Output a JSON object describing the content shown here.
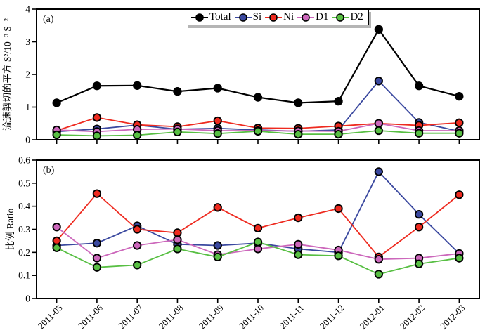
{
  "figure": {
    "background": "#ffffff",
    "axis_color": "#000000"
  },
  "legend": {
    "position": "top-center",
    "entries": [
      {
        "label": "Total",
        "color": "#000000"
      },
      {
        "label": "Si",
        "color": "#3a489f"
      },
      {
        "label": "Ni",
        "color": "#ee2a1f"
      },
      {
        "label": "D1",
        "color": "#cc67bb"
      },
      {
        "label": "D2",
        "color": "#58bf43"
      }
    ]
  },
  "chart_data": [
    {
      "type": "line",
      "panel_label": "(a)",
      "title": "",
      "xlabel": "",
      "ylabel": "流速剪切的平方 S²/10⁻³ S⁻²",
      "ylim": [
        0,
        4
      ],
      "yticks": [
        0,
        1,
        2,
        3,
        4
      ],
      "ytick_labels": [
        "0",
        "1",
        "2",
        "3",
        "4"
      ],
      "grid": false,
      "legend_position": "top-center-inside",
      "show_x_labels": false,
      "categories": [
        "2011-05",
        "2011-06",
        "2011-07",
        "2011-08",
        "2011-09",
        "2011-10",
        "2011-11",
        "2011-12",
        "2012-01",
        "2012-02",
        "2012-03"
      ],
      "series": [
        {
          "name": "Si",
          "color": "#3a489f",
          "values": [
            0.25,
            0.33,
            0.45,
            0.32,
            0.35,
            0.3,
            0.26,
            0.3,
            1.8,
            0.53,
            0.26
          ]
        },
        {
          "name": "Ni",
          "color": "#ee2a1f",
          "values": [
            0.28,
            0.68,
            0.46,
            0.4,
            0.58,
            0.36,
            0.35,
            0.42,
            0.5,
            0.44,
            0.52
          ]
        },
        {
          "name": "D1",
          "color": "#cc67bb",
          "values": [
            0.3,
            0.25,
            0.32,
            0.33,
            0.28,
            0.28,
            0.27,
            0.26,
            0.5,
            0.28,
            0.28
          ]
        },
        {
          "name": "D2",
          "color": "#58bf43",
          "values": [
            0.15,
            0.12,
            0.14,
            0.24,
            0.19,
            0.26,
            0.17,
            0.17,
            0.28,
            0.2,
            0.2
          ]
        },
        {
          "name": "Total",
          "color": "#000000",
          "values": [
            1.13,
            1.65,
            1.66,
            1.48,
            1.58,
            1.3,
            1.13,
            1.18,
            3.38,
            1.65,
            1.33
          ]
        }
      ]
    },
    {
      "type": "line",
      "panel_label": "(b)",
      "title": "",
      "xlabel": "",
      "ylabel": "比例 Ratio",
      "ylim": [
        0,
        0.6
      ],
      "yticks": [
        0,
        0.1,
        0.2,
        0.3,
        0.4,
        0.5,
        0.6
      ],
      "ytick_labels": [
        "0",
        "0.1",
        "0.2",
        "0.3",
        "0.4",
        "0.5",
        "0.6"
      ],
      "grid": false,
      "show_x_labels": true,
      "categories": [
        "2011-05",
        "2011-06",
        "2011-07",
        "2011-08",
        "2011-09",
        "2011-10",
        "2011-11",
        "2011-12",
        "2012-01",
        "2012-02",
        "2012-03"
      ],
      "series": [
        {
          "name": "Si",
          "color": "#3a489f",
          "values": [
            0.23,
            0.24,
            0.315,
            0.235,
            0.23,
            0.24,
            0.215,
            0.2,
            0.55,
            0.365,
            0.195
          ]
        },
        {
          "name": "Ni",
          "color": "#ee2a1f",
          "values": [
            0.25,
            0.455,
            0.3,
            0.285,
            0.395,
            0.305,
            0.35,
            0.39,
            0.18,
            0.31,
            0.45
          ]
        },
        {
          "name": "D1",
          "color": "#cc67bb",
          "values": [
            0.31,
            0.175,
            0.23,
            0.255,
            0.19,
            0.215,
            0.235,
            0.21,
            0.17,
            0.175,
            0.195
          ]
        },
        {
          "name": "D2",
          "color": "#58bf43",
          "values": [
            0.22,
            0.135,
            0.145,
            0.215,
            0.18,
            0.245,
            0.19,
            0.185,
            0.105,
            0.15,
            0.175
          ]
        }
      ]
    }
  ]
}
